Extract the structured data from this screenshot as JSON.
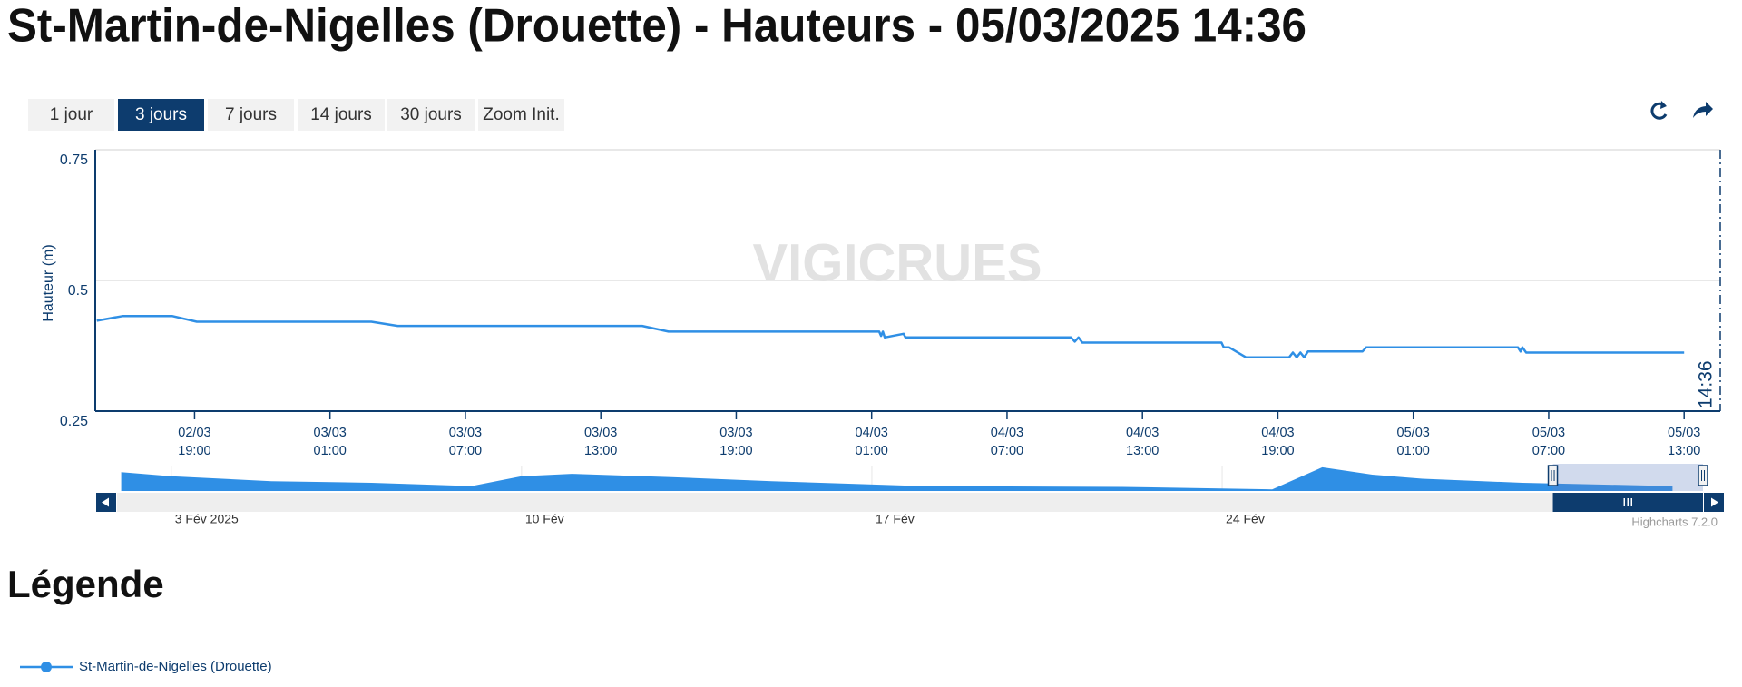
{
  "title": "St-Martin-de-Nigelles (Drouette) - Hauteurs - 05/03/2025 14:36",
  "range_buttons": [
    {
      "label": "1 jour",
      "active": false
    },
    {
      "label": "3 jours",
      "active": true
    },
    {
      "label": "7 jours",
      "active": false
    },
    {
      "label": "14 jours",
      "active": false
    },
    {
      "label": "30 jours",
      "active": false
    },
    {
      "label": "Zoom Init.",
      "active": false
    }
  ],
  "watermark": "VIGICRUES",
  "credits": "Highcharts 7.2.0",
  "legend_title": "Légende",
  "chart_data": [
    {
      "type": "line",
      "y_label": "Hauteur (m)",
      "xlim": [
        "2025-03-02T14:36",
        "2025-03-05T14:36"
      ],
      "ylim": [
        0.25,
        0.75
      ],
      "yticks": [
        0.25,
        0.5,
        0.75
      ],
      "grid": true,
      "xticks": [
        {
          "value": "2025-03-02T19:00",
          "label": [
            "02/03",
            "19:00"
          ]
        },
        {
          "value": "2025-03-03T01:00",
          "label": [
            "03/03",
            "01:00"
          ]
        },
        {
          "value": "2025-03-03T07:00",
          "label": [
            "03/03",
            "07:00"
          ]
        },
        {
          "value": "2025-03-03T13:00",
          "label": [
            "03/03",
            "13:00"
          ]
        },
        {
          "value": "2025-03-03T19:00",
          "label": [
            "03/03",
            "19:00"
          ]
        },
        {
          "value": "2025-03-04T01:00",
          "label": [
            "04/03",
            "01:00"
          ]
        },
        {
          "value": "2025-03-04T07:00",
          "label": [
            "04/03",
            "07:00"
          ]
        },
        {
          "value": "2025-03-04T13:00",
          "label": [
            "04/03",
            "13:00"
          ]
        },
        {
          "value": "2025-03-04T19:00",
          "label": [
            "04/03",
            "19:00"
          ]
        },
        {
          "value": "2025-03-05T01:00",
          "label": [
            "05/03",
            "01:00"
          ]
        },
        {
          "value": "2025-03-05T07:00",
          "label": [
            "05/03",
            "07:00"
          ]
        },
        {
          "value": "2025-03-05T13:00",
          "label": [
            "05/03",
            "13:00"
          ]
        }
      ],
      "plot_line": {
        "value": "2025-03-05T14:36",
        "label": "14:36"
      },
      "x": [
        "2025-03-02T14:40",
        "2025-03-02T15:50",
        "2025-03-02T18:00",
        "2025-03-02T19:06",
        "2025-03-03T02:50",
        "2025-03-03T04:00",
        "2025-03-03T14:50",
        "2025-03-03T16:00",
        "2025-03-04T01:20",
        "2025-03-04T01:25",
        "2025-03-04T01:30",
        "2025-03-04T01:35",
        "2025-03-04T02:25",
        "2025-03-04T02:30",
        "2025-03-04T09:50",
        "2025-03-04T10:00",
        "2025-03-04T10:10",
        "2025-03-04T10:20",
        "2025-03-04T16:30",
        "2025-03-04T16:36",
        "2025-03-04T16:50",
        "2025-03-04T17:35",
        "2025-03-04T19:30",
        "2025-03-04T19:40",
        "2025-03-04T19:50",
        "2025-03-04T20:00",
        "2025-03-04T20:10",
        "2025-03-04T20:20",
        "2025-03-04T22:45",
        "2025-03-04T22:55",
        "2025-03-05T05:38",
        "2025-03-05T05:45",
        "2025-03-05T05:50",
        "2025-03-05T06:00",
        "2025-03-05T13:00"
      ],
      "series": [
        {
          "name": "St-Martin-de-Nigelles (Drouette)",
          "color": "#2f8fe5",
          "values": [
            0.423,
            0.432,
            0.432,
            0.421,
            0.421,
            0.413,
            0.413,
            0.402,
            0.402,
            0.394,
            0.402,
            0.391,
            0.398,
            0.391,
            0.391,
            0.383,
            0.391,
            0.381,
            0.381,
            0.372,
            0.372,
            0.353,
            0.353,
            0.362,
            0.353,
            0.362,
            0.353,
            0.364,
            0.364,
            0.372,
            0.372,
            0.364,
            0.372,
            0.362,
            0.362
          ]
        }
      ]
    },
    {
      "type": "area",
      "xlim": [
        "2025-02-01T22:00",
        "2025-03-05T14:36"
      ],
      "ylim": [
        0.3,
        0.6
      ],
      "xticks": [
        {
          "value": "2025-02-03T00:00",
          "label": "3 Fév 2025"
        },
        {
          "value": "2025-02-10T00:00",
          "label": "10 Fév"
        },
        {
          "value": "2025-02-17T00:00",
          "label": "17 Fév"
        },
        {
          "value": "2025-02-24T00:00",
          "label": "24 Fév"
        }
      ],
      "selection": [
        "2025-03-02T14:36",
        "2025-03-05T14:36"
      ],
      "x": [
        "2025-02-02T00:00",
        "2025-02-03T00:00",
        "2025-02-05T00:00",
        "2025-02-07T00:00",
        "2025-02-09T00:00",
        "2025-02-10T00:00",
        "2025-02-11T00:00",
        "2025-02-13T00:00",
        "2025-02-15T00:00",
        "2025-02-18T00:00",
        "2025-02-22T00:00",
        "2025-02-25T00:00",
        "2025-02-26T00:00",
        "2025-02-27T00:00",
        "2025-02-28T00:00",
        "2025-03-02T00:00",
        "2025-03-05T00:00"
      ],
      "series": [
        {
          "color": "#2f8fe5",
          "values": [
            0.53,
            0.48,
            0.42,
            0.4,
            0.36,
            0.48,
            0.51,
            0.47,
            0.42,
            0.36,
            0.35,
            0.32,
            0.59,
            0.5,
            0.45,
            0.4,
            0.36
          ]
        }
      ]
    }
  ]
}
